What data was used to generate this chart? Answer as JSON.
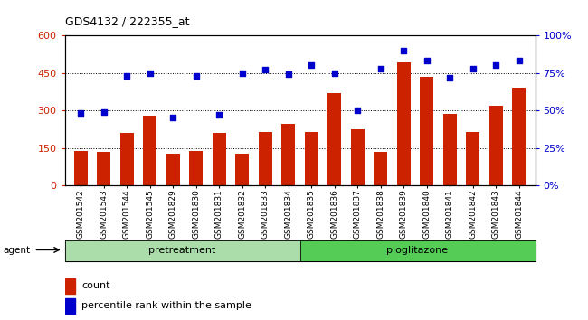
{
  "title": "GDS4132 / 222355_at",
  "samples": [
    "GSM201542",
    "GSM201543",
    "GSM201544",
    "GSM201545",
    "GSM201829",
    "GSM201830",
    "GSM201831",
    "GSM201832",
    "GSM201833",
    "GSM201834",
    "GSM201835",
    "GSM201836",
    "GSM201837",
    "GSM201838",
    "GSM201839",
    "GSM201840",
    "GSM201841",
    "GSM201842",
    "GSM201843",
    "GSM201844"
  ],
  "counts": [
    138,
    135,
    210,
    280,
    128,
    138,
    210,
    128,
    215,
    245,
    215,
    370,
    225,
    135,
    490,
    435,
    285,
    215,
    320,
    390
  ],
  "percentiles": [
    48,
    49,
    73,
    75,
    45,
    73,
    47,
    75,
    77,
    74,
    80,
    75,
    50,
    78,
    90,
    83,
    72,
    78,
    80,
    83
  ],
  "pretreatment_count": 10,
  "pioglitazone_count": 10,
  "bar_color": "#cc2200",
  "dot_color": "#0000cc",
  "left_ylim": [
    0,
    600
  ],
  "right_ylim": [
    0,
    100
  ],
  "left_yticks": [
    0,
    150,
    300,
    450,
    600
  ],
  "right_yticks": [
    0,
    25,
    50,
    75,
    100
  ],
  "left_ytick_labels": [
    "0",
    "150",
    "300",
    "450",
    "600"
  ],
  "right_ytick_labels": [
    "0%",
    "25%",
    "50%",
    "75%",
    "100%"
  ],
  "pretreatment_color": "#aaddaa",
  "pioglitazone_color": "#55cc55",
  "agent_label": "agent",
  "legend_count_label": "count",
  "legend_pct_label": "percentile rank within the sample",
  "grid_dotted_levels": [
    150,
    300,
    450
  ],
  "background_color": "#ffffff",
  "left_tick_color": "#cc2200",
  "right_tick_color": "#0000cc"
}
